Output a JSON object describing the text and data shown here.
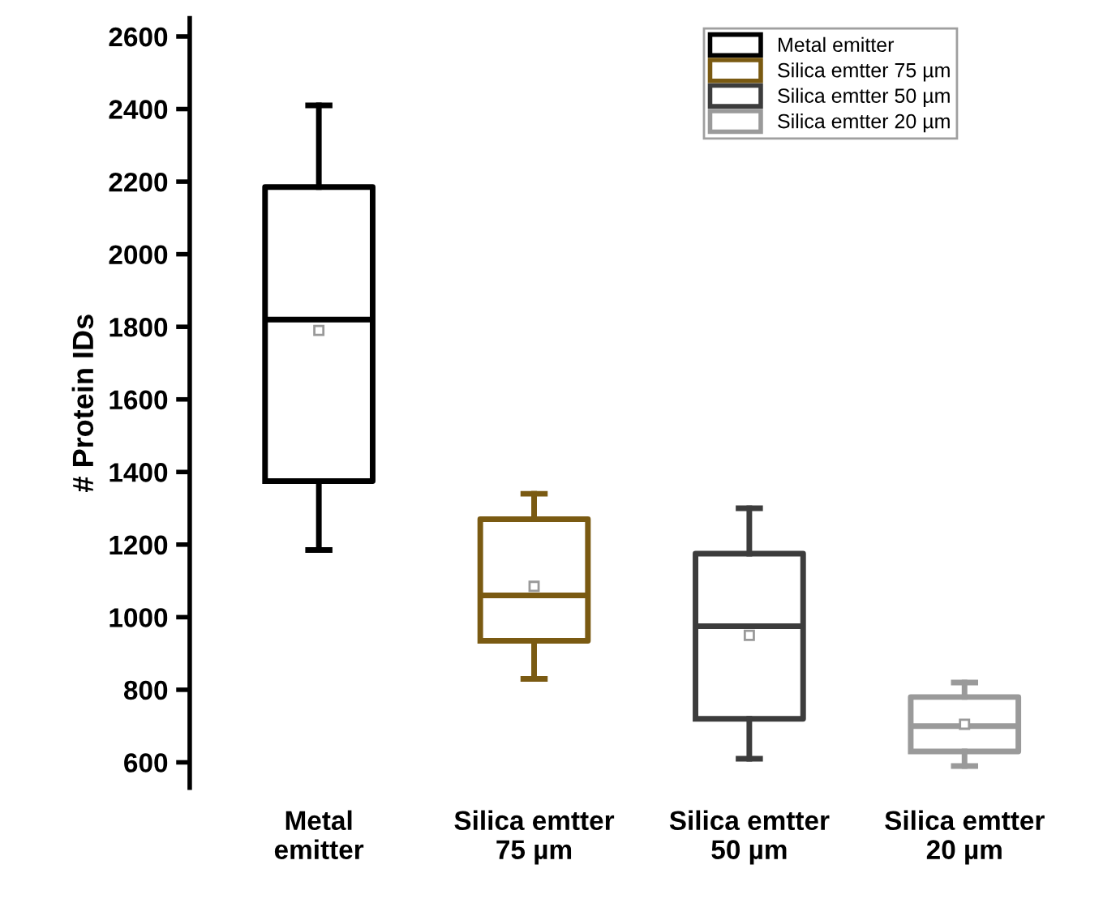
{
  "chart_data": {
    "type": "box",
    "ylabel": "# Protein IDs",
    "categories": [
      "Metal\nemitter",
      "Silica emtter\n75 µm",
      "Silica emtter\n50 µm",
      "Silica emtter\n20 µm"
    ],
    "series": [
      {
        "name": "Metal emitter",
        "color": "#000000",
        "boxes": [
          {
            "low": 1185,
            "q1": 1375,
            "median": 1820,
            "q3": 2185,
            "high": 2410,
            "mean": 1790
          },
          null,
          null,
          null
        ]
      },
      {
        "name": "Silica emtter 75 µm",
        "color": "#7a5a12",
        "boxes": [
          null,
          {
            "low": 830,
            "q1": 935,
            "median": 1060,
            "q3": 1270,
            "high": 1340,
            "mean": 1085
          },
          null,
          null
        ]
      },
      {
        "name": "Silica emtter 50 µm",
        "color": "#3c3c3c",
        "boxes": [
          null,
          null,
          {
            "low": 610,
            "q1": 720,
            "median": 975,
            "q3": 1175,
            "high": 1300,
            "mean": 950
          },
          null
        ]
      },
      {
        "name": "Silica emtter 20 µm",
        "color": "#9a9a9a",
        "boxes": [
          null,
          null,
          null,
          {
            "low": 590,
            "q1": 630,
            "median": 700,
            "q3": 780,
            "high": 820,
            "mean": 705
          }
        ]
      }
    ],
    "ylim": [
      530,
      2650
    ],
    "yticks": [
      600,
      800,
      1000,
      1200,
      1400,
      1600,
      1800,
      2000,
      2200,
      2400,
      2600
    ],
    "legend": "top right",
    "grid": false
  }
}
